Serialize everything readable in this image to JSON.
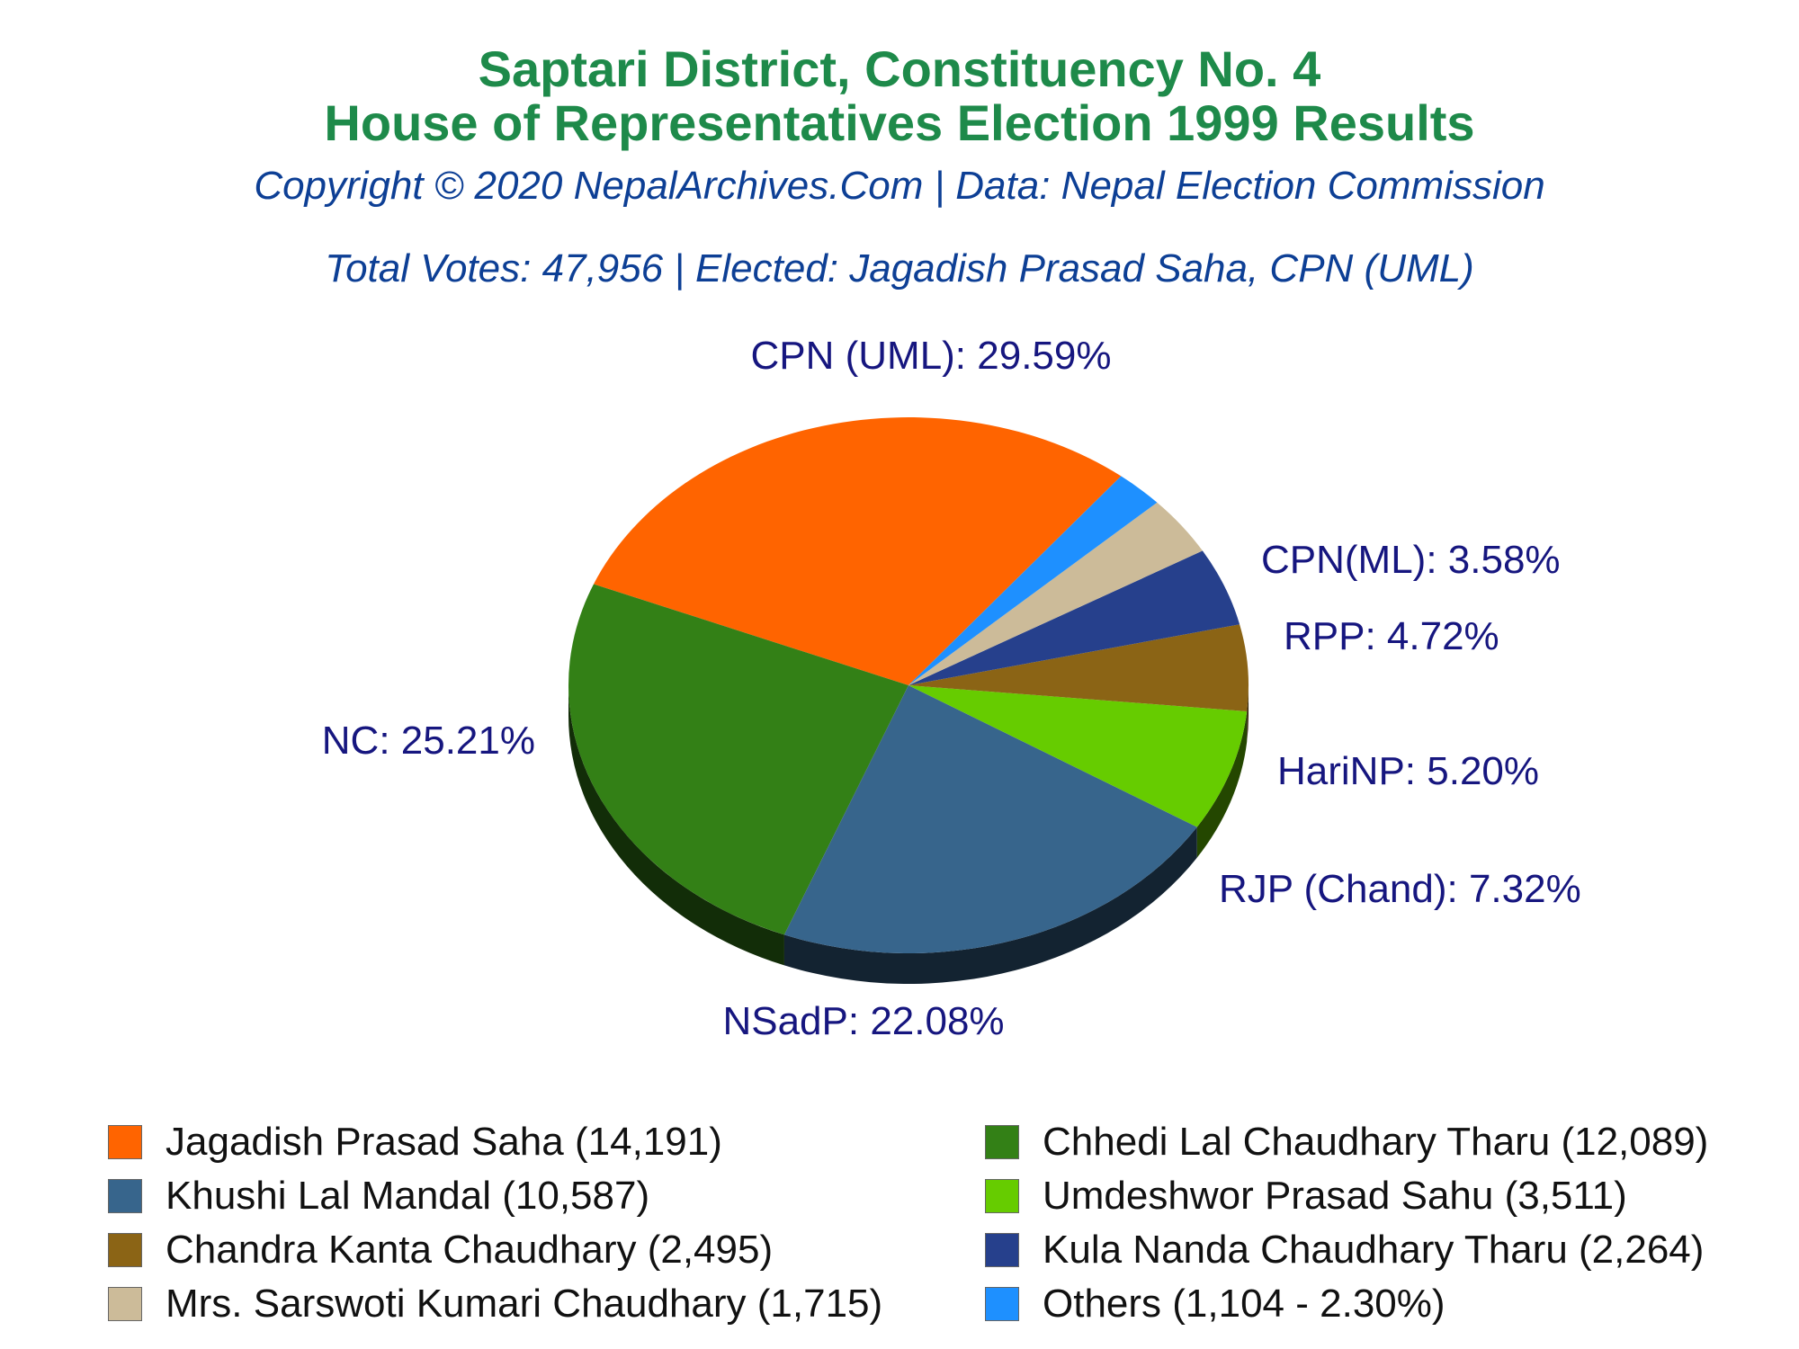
{
  "header": {
    "title_line1": "Saptari District, Constituency No. 4",
    "title_line2": "House of Representatives Election 1999 Results",
    "copyright": "Copyright © 2020 NepalArchives.Com | Data: Nepal Election Commission",
    "summary": "Total Votes: 47,956 | Elected: Jagadish Prasad Saha, CPN (UML)"
  },
  "colors": {
    "title": "#1e8a4a",
    "subtitle": "#0d3f95",
    "slice_label": "#16167f"
  },
  "chart_data": {
    "type": "pie",
    "style": "3d",
    "slices": [
      {
        "label": "CPN (UML): 29.59%",
        "percent": 29.59,
        "votes": 14191,
        "color": "#ff6400",
        "legend": "Jagadish Prasad Saha (14,191)"
      },
      {
        "label": "NC: 25.21%",
        "percent": 25.21,
        "votes": 12089,
        "color": "#338016",
        "legend": "Chhedi Lal Chaudhary Tharu (12,089)"
      },
      {
        "label": "NSadP: 22.08%",
        "percent": 22.08,
        "votes": 10587,
        "color": "#37658c",
        "legend": "Khushi Lal Mandal (10,587)"
      },
      {
        "label": "RJP (Chand): 7.32%",
        "percent": 7.32,
        "votes": 3511,
        "color": "#66cc00",
        "legend": "Umdeshwor Prasad Sahu (3,511)"
      },
      {
        "label": "HariNP: 5.20%",
        "percent": 5.2,
        "votes": 2495,
        "color": "#8b6415",
        "legend": "Chandra Kanta Chaudhary (2,495)"
      },
      {
        "label": "RPP: 4.72%",
        "percent": 4.72,
        "votes": 2264,
        "color": "#26408c",
        "legend": "Kula Nanda Chaudhary Tharu (2,264)"
      },
      {
        "label": "CPN(ML): 3.58%",
        "percent": 3.58,
        "votes": 1715,
        "color": "#ccbb99",
        "legend": "Mrs. Sarswoti Kumari Chaudhary (1,715)"
      },
      {
        "label": "",
        "percent": 2.3,
        "votes": 1104,
        "color": "#1e90ff",
        "legend": "Others (1,104 - 2.30%)"
      }
    ]
  },
  "legend": {
    "items": [
      {
        "text": "Jagadish Prasad Saha (14,191)",
        "color": "#ff6400"
      },
      {
        "text": "Chhedi Lal Chaudhary Tharu (12,089)",
        "color": "#338016"
      },
      {
        "text": "Khushi Lal Mandal (10,587)",
        "color": "#37658c"
      },
      {
        "text": "Umdeshwor Prasad Sahu (3,511)",
        "color": "#66cc00"
      },
      {
        "text": "Chandra Kanta Chaudhary (2,495)",
        "color": "#8b6415"
      },
      {
        "text": "Kula Nanda Chaudhary Tharu (2,264)",
        "color": "#26408c"
      },
      {
        "text": "Mrs. Sarswoti Kumari Chaudhary (1,715)",
        "color": "#ccbb99"
      },
      {
        "text": "Others (1,104 - 2.30%)",
        "color": "#1e90ff"
      }
    ]
  }
}
